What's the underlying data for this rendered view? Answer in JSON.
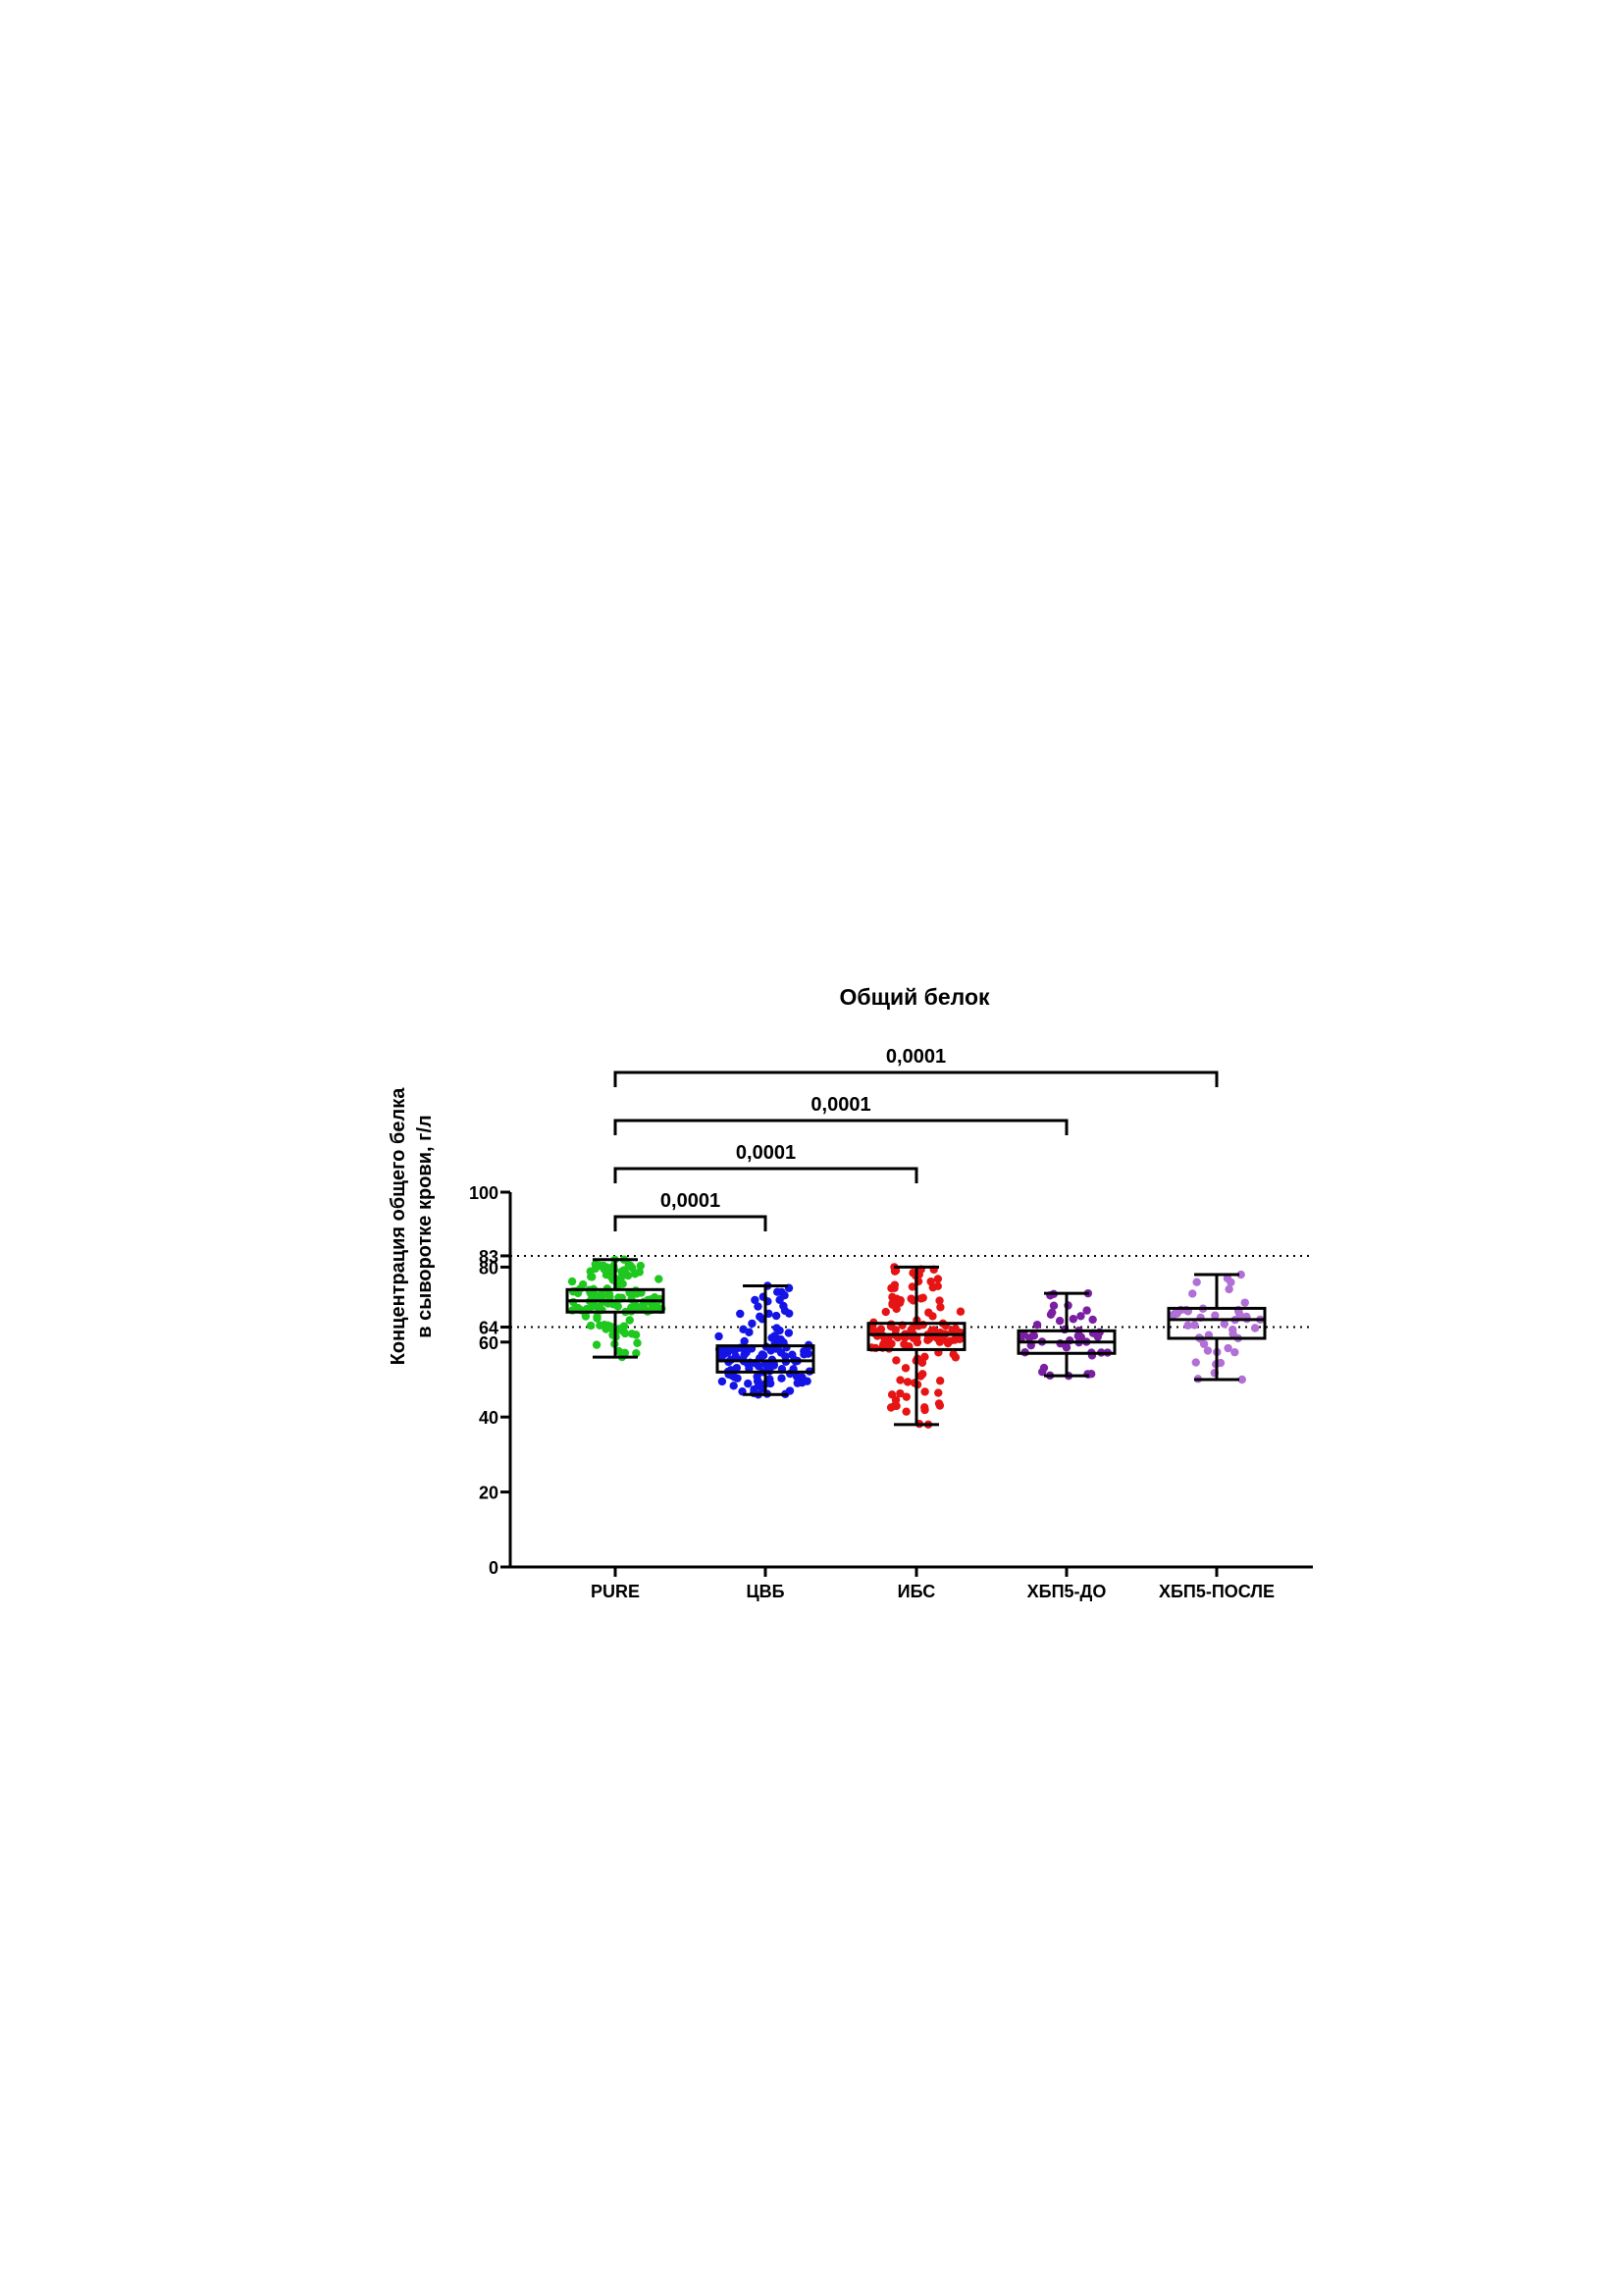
{
  "chart_data": {
    "type": "box",
    "title": "Общий белок",
    "xlabel": "",
    "ylabel": [
      "Концентрация общего белка",
      "в сыворотке крови, г/л"
    ],
    "ylim": [
      0,
      100
    ],
    "yticks": [
      0,
      20,
      40,
      60,
      64,
      80,
      83,
      100
    ],
    "reference_lines": [
      83,
      64
    ],
    "grid": false,
    "legend": "none",
    "categories": [
      "PURE",
      "ЦВБ",
      "ИБС",
      "ХБП5-ДО",
      "ХБП5-ПОСЛЕ"
    ],
    "series": [
      {
        "color": "#1ec81e",
        "min": 56,
        "q1": 68,
        "median": 71,
        "q3": 74,
        "max": 82,
        "n": 140
      },
      {
        "color": "#1414e6",
        "min": 46,
        "q1": 52,
        "median": 55,
        "q3": 59,
        "max": 75,
        "n": 120
      },
      {
        "color": "#e61414",
        "min": 38,
        "q1": 58,
        "median": 62,
        "q3": 65,
        "max": 80,
        "n": 130
      },
      {
        "color": "#7a1fa2",
        "min": 51,
        "q1": 57,
        "median": 60,
        "q3": 63,
        "max": 73,
        "n": 45
      },
      {
        "color": "#b26fd6",
        "min": 50,
        "q1": 61,
        "median": 66,
        "q3": 69,
        "max": 78,
        "n": 45
      }
    ],
    "comparisons": [
      {
        "from": "PURE",
        "to": "ЦВБ",
        "label": "0,0001"
      },
      {
        "from": "PURE",
        "to": "ИБС",
        "label": "0,0001"
      },
      {
        "from": "PURE",
        "to": "ХБП5-ДО",
        "label": "0,0001"
      },
      {
        "from": "PURE",
        "to": "ХБП5-ПОСЛЕ",
        "label": "0,0001"
      }
    ]
  }
}
